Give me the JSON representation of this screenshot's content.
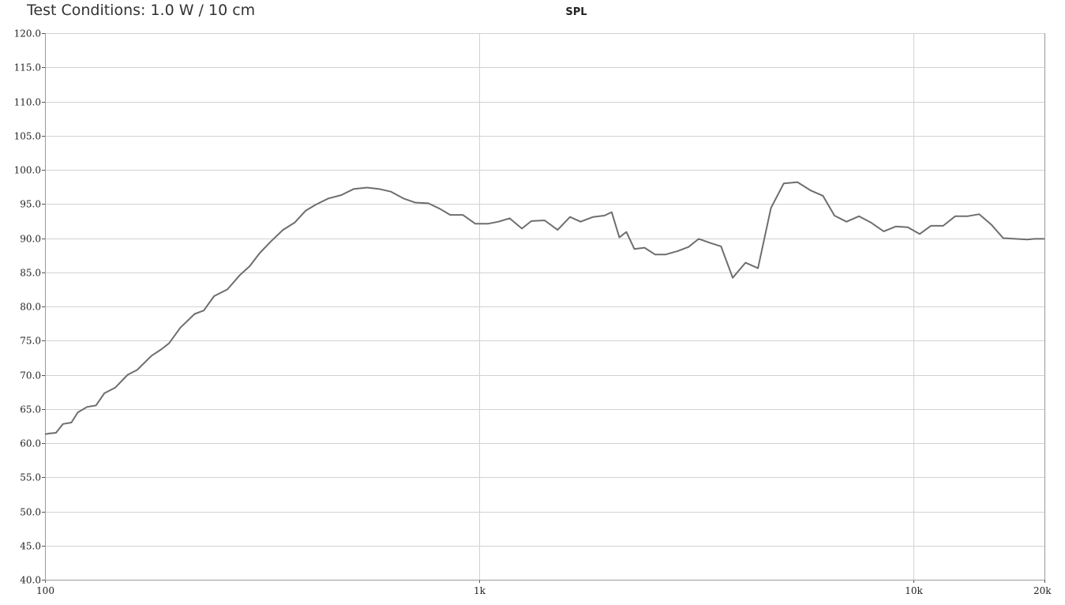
{
  "header": {
    "conditions": "Test Conditions: 1.0 W / 10 cm",
    "title": "SPL"
  },
  "chart_data": {
    "type": "line",
    "title": "SPL",
    "xlabel": "",
    "ylabel": "",
    "xscale": "log",
    "xlim": [
      100,
      20000
    ],
    "ylim": [
      40,
      120
    ],
    "grid": true,
    "x_ticks": [
      {
        "value": 100,
        "label": "100"
      },
      {
        "value": 1000,
        "label": "1k"
      },
      {
        "value": 10000,
        "label": "10k"
      },
      {
        "value": 20000,
        "label": "20k"
      }
    ],
    "y_ticks": [
      {
        "value": 120,
        "label": "120.0"
      },
      {
        "value": 115,
        "label": "115.0"
      },
      {
        "value": 110,
        "label": "110.0"
      },
      {
        "value": 105,
        "label": "105.0"
      },
      {
        "value": 100,
        "label": "100.0"
      },
      {
        "value": 95,
        "label": "95.0"
      },
      {
        "value": 90,
        "label": "90.0"
      },
      {
        "value": 85,
        "label": "85.0"
      },
      {
        "value": 80,
        "label": "80.0"
      },
      {
        "value": 75,
        "label": "75.0"
      },
      {
        "value": 70,
        "label": "70.0"
      },
      {
        "value": 65,
        "label": "65.0"
      },
      {
        "value": 60,
        "label": "60.0"
      },
      {
        "value": 55,
        "label": "55.0"
      },
      {
        "value": 50,
        "label": "50.0"
      },
      {
        "value": 45,
        "label": "45.0"
      },
      {
        "value": 40,
        "label": "40.0"
      }
    ],
    "series": [
      {
        "color": "#6e6e6e",
        "x": [
          100,
          102,
          106,
          110,
          115,
          119,
          125,
          131,
          137,
          145,
          155,
          163,
          176,
          185,
          193,
          205,
          221,
          232,
          245,
          263,
          281,
          296,
          312,
          331,
          353,
          376,
          398,
          420,
          449,
          481,
          514,
          551,
          587,
          626,
          669,
          712,
          763,
          811,
          857,
          916,
          979,
          1046,
          1106,
          1174,
          1253,
          1317,
          1413,
          1514,
          1617,
          1710,
          1827,
          1940,
          2017,
          2100,
          2180,
          2275,
          2400,
          2540,
          2680,
          2860,
          3030,
          3200,
          3400,
          3600,
          3830,
          4100,
          4380,
          4690,
          5020,
          5400,
          5780,
          6180,
          6570,
          7000,
          7480,
          7960,
          8530,
          9090,
          9690,
          10320,
          10950,
          11690,
          12460,
          13280,
          14150,
          15080,
          16070,
          17130,
          18250,
          19010,
          20000
        ],
        "y": [
          61.3,
          61.4,
          61.5,
          62.8,
          63.0,
          64.5,
          65.3,
          65.5,
          67.3,
          68.1,
          70.0,
          70.7,
          72.8,
          73.7,
          74.6,
          76.9,
          78.9,
          79.4,
          81.5,
          82.5,
          84.6,
          85.9,
          87.8,
          89.5,
          91.2,
          92.3,
          94.0,
          94.9,
          95.8,
          96.3,
          97.2,
          97.4,
          97.2,
          96.8,
          95.8,
          95.2,
          95.1,
          94.3,
          93.4,
          93.4,
          92.1,
          92.1,
          92.4,
          92.9,
          91.4,
          92.5,
          92.6,
          91.2,
          93.1,
          92.4,
          93.1,
          93.3,
          93.8,
          90.1,
          90.9,
          88.4,
          88.6,
          87.6,
          87.6,
          88.1,
          88.7,
          89.9,
          89.3,
          88.8,
          84.2,
          86.4,
          85.6,
          94.4,
          98.0,
          98.2,
          97.0,
          96.2,
          93.3,
          92.4,
          93.2,
          92.3,
          91.0,
          91.7,
          91.6,
          90.6,
          91.8,
          91.8,
          93.2,
          93.2,
          93.5,
          92.0,
          90.0,
          89.9,
          89.8,
          89.9,
          89.9
        ]
      }
    ]
  }
}
